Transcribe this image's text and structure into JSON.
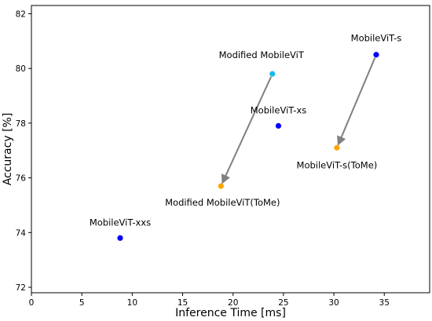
{
  "chart_data": {
    "type": "scatter",
    "title": "",
    "xlabel": "Inference Time [ms]",
    "ylabel": "Accuracy [%]",
    "xlim": [
      0,
      39.5
    ],
    "ylim": [
      71.8,
      82.3
    ],
    "xticks": [
      0,
      5,
      10,
      15,
      20,
      25,
      30,
      35
    ],
    "yticks": [
      72,
      74,
      76,
      78,
      80,
      82
    ],
    "grid": false,
    "points": [
      {
        "label": "MobileViT-xxs",
        "x": 8.8,
        "y": 73.8,
        "color": "#0000ff"
      },
      {
        "label": "MobileViT-xs",
        "x": 24.5,
        "y": 77.9,
        "color": "#0000ff"
      },
      {
        "label": "MobileViT-s",
        "x": 34.2,
        "y": 80.5,
        "color": "#0000ff"
      },
      {
        "label": "Modified MobileViT",
        "x": 23.9,
        "y": 79.8,
        "color": "#1fb8ec"
      },
      {
        "label": "Modified MobileViT(ToMe)",
        "x": 18.8,
        "y": 75.7,
        "color": "#ffa500"
      },
      {
        "label": "MobileViT-s(ToMe)",
        "x": 30.3,
        "y": 77.1,
        "color": "#ffa500"
      }
    ],
    "arrows": [
      {
        "from": [
          23.9,
          79.8
        ],
        "to": [
          18.8,
          75.7
        ],
        "color": "#808080"
      },
      {
        "from": [
          34.2,
          80.5
        ],
        "to": [
          30.3,
          77.1
        ],
        "color": "#808080"
      }
    ]
  }
}
